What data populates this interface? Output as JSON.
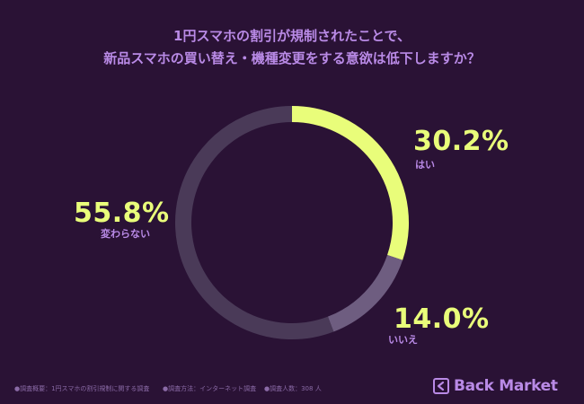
{
  "title": {
    "line1": "1円スマホの割引が規制されたことで、",
    "line2": "新品スマホの買い替え・機種変更をする意欲は低下しますか？"
  },
  "chart_data": {
    "type": "pie",
    "donut": true,
    "slices": [
      {
        "label": "はい",
        "value": 30.2,
        "display": "30.2%",
        "color": "#e9fd7a"
      },
      {
        "label": "いいえ",
        "value": 14.0,
        "display": "14.0%",
        "color": "#6e5d80"
      },
      {
        "label": "変わらない",
        "value": 55.8,
        "display": "55.8%",
        "color": "#4a3a58"
      }
    ]
  },
  "footnotes": [
    "●調査概要：1円スマホの割引規制に関する調査",
    "●調査方法：インターネット調査",
    "●調査人数：308 人"
  ],
  "brand": {
    "name": "Back Market",
    "icon": "back-market-logo-icon",
    "color": "#b98ae6"
  }
}
